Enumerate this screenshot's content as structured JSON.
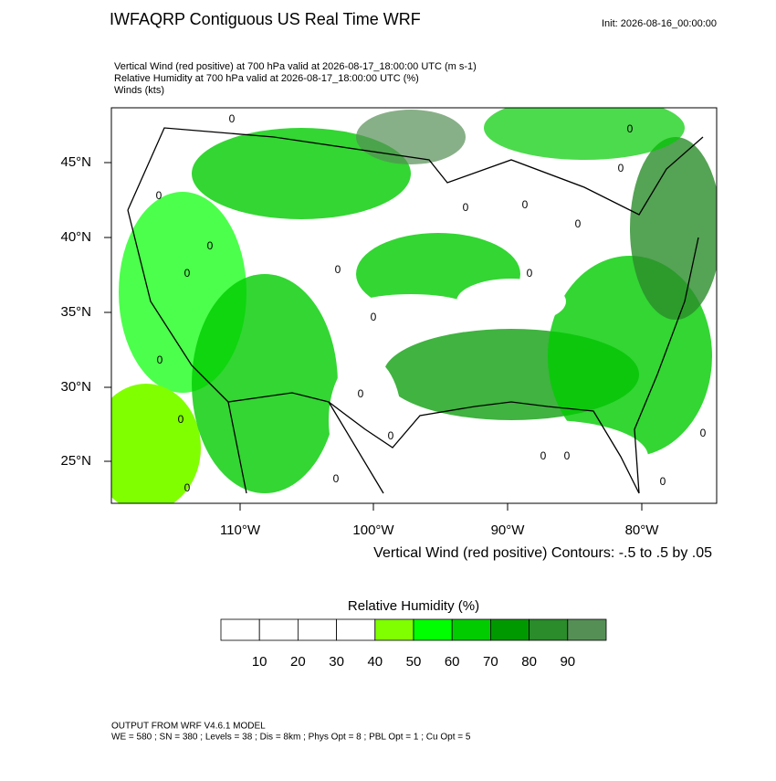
{
  "header": {
    "title": "IWFAQRP Contiguous US Real Time WRF",
    "init": "Init: 2026-08-16_00:00:00"
  },
  "subtitle": [
    "Vertical Wind (red positive) at 700 hPa valid at 2026-08-17_18:00:00 UTC   (m s-1)",
    "Relative Humidity at 700 hPa valid at 2026-08-17_18:00:00 UTC   (%)",
    "Winds   (kts)"
  ],
  "map": {
    "lat_labels": [
      "45°N",
      "40°N",
      "35°N",
      "30°N",
      "25°N"
    ],
    "lon_labels": [
      "110°W",
      "100°W",
      "90°W",
      "80°W"
    ],
    "contour_label": "0",
    "contour_note": "Vertical Wind (red positive) Contours: -.5 to .5 by .05"
  },
  "colorbar": {
    "title": "Relative Humidity  (%)",
    "colors": [
      "#ffffff",
      "#ffffff",
      "#ffffff",
      "#ffffff",
      "#80ff00",
      "#00ff00",
      "#00cc00",
      "#009900",
      "#2a8c2a",
      "#568f56"
    ],
    "labels": [
      10,
      20,
      30,
      40,
      50,
      60,
      70,
      80,
      90
    ]
  },
  "footer": [
    "OUTPUT FROM WRF V4.6.1 MODEL",
    "WE = 580 ; SN = 380 ; Levels = 38 ; Dis = 8km ; Phys Opt = 8 ; PBL Opt = 1 ; Cu Opt = 5"
  ]
}
